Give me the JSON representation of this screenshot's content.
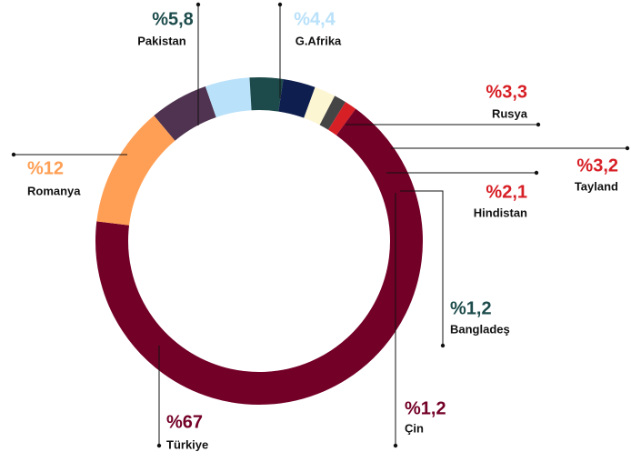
{
  "chart_data": {
    "type": "donut",
    "categories": [
      "Pakistan",
      "G.Afrika",
      "Rusya",
      "Tayland",
      "Hindistan",
      "Bangladeş",
      "Çin",
      "Türkiye",
      "Romanya"
    ],
    "values": [
      5.8,
      4.4,
      3.3,
      3.2,
      2.1,
      1.2,
      1.2,
      67,
      12
    ],
    "value_labels": [
      "%5,8",
      "%4,4",
      "%3,3",
      "%3,2",
      "%2,1",
      "%1,2",
      "%1,2",
      "%67",
      "%12"
    ],
    "colors": [
      "#4f3350",
      "#b9e1fa",
      "#1d4b4b",
      "#0e1e4e",
      "#fdf6d3",
      "#454545",
      "#d71f26",
      "#730027",
      "#ff9f55"
    ],
    "label_colors": [
      "#1d4b4b",
      "#b9e1fa",
      "#d71f26",
      "#d71f26",
      "#d71f26",
      "#1d4b4b",
      "#730027",
      "#730027",
      "#ff9f55"
    ]
  }
}
